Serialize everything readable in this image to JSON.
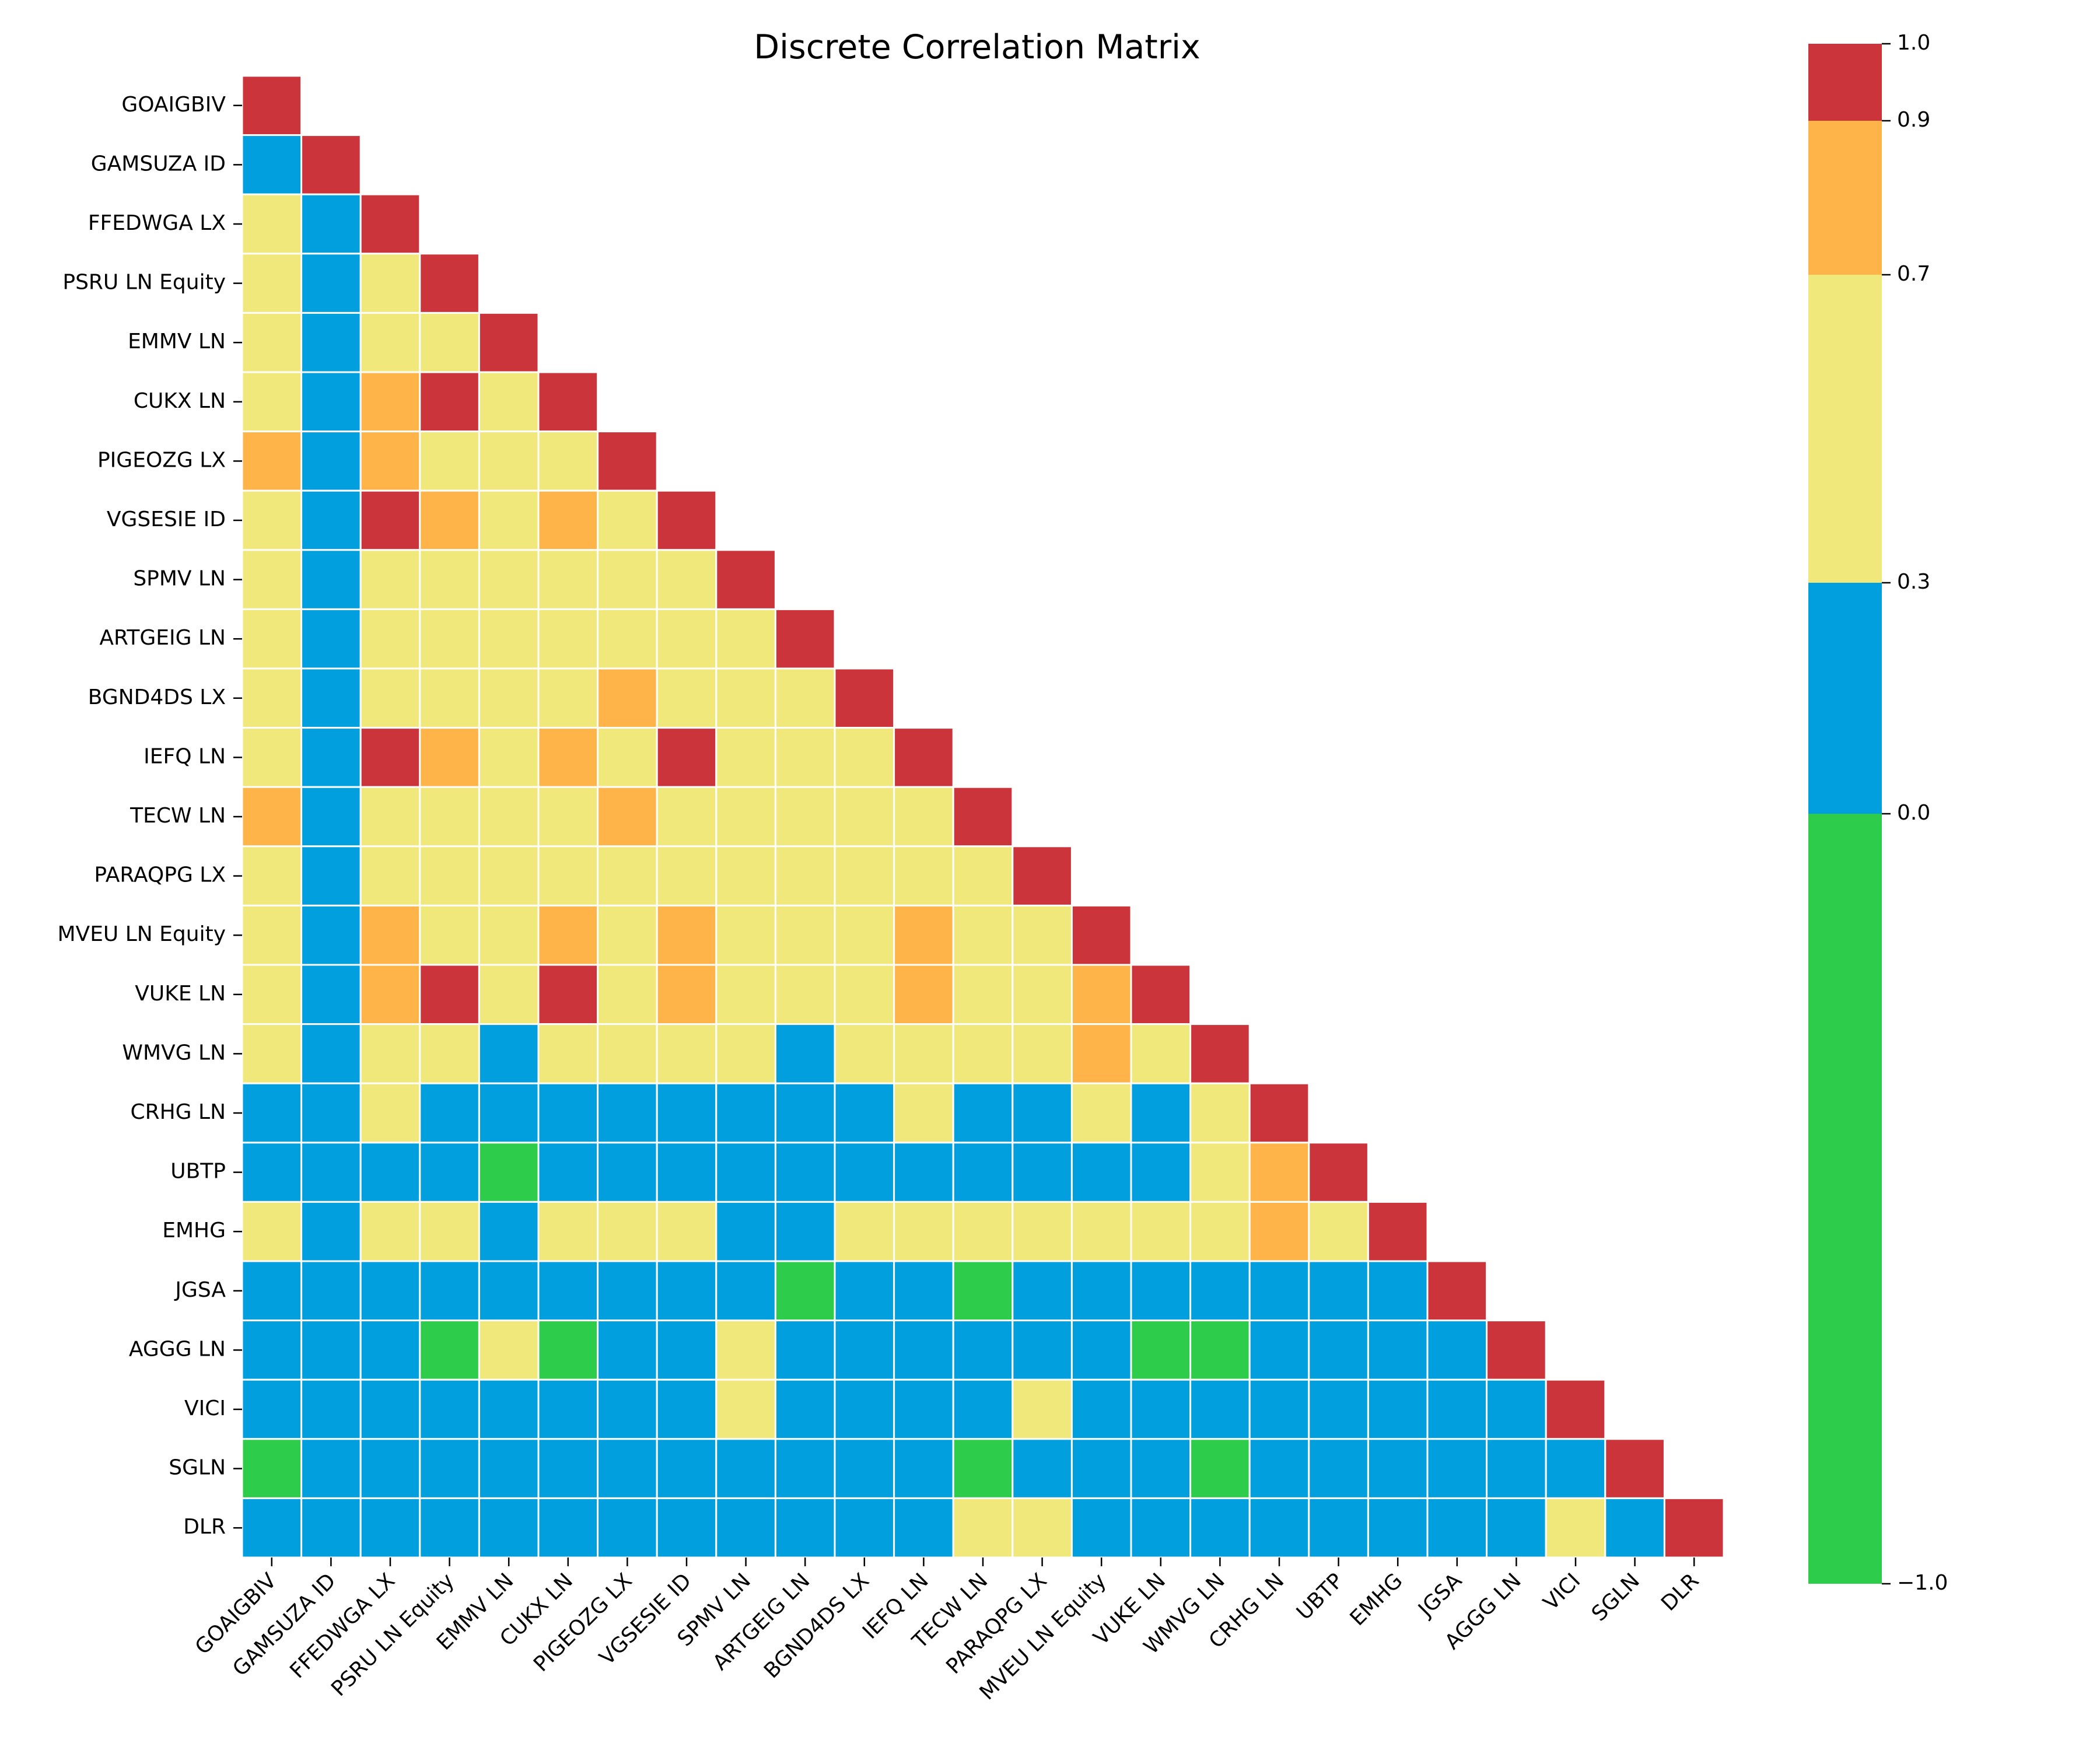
{
  "chart_data": {
    "type": "heatmap",
    "title": "Discrete Correlation Matrix",
    "labels": [
      "GOAIGBIV",
      "GAMSUZA ID",
      "FFEDWGA LX",
      "PSRU LN Equity",
      "EMMV LN",
      "CUKX LN",
      "PIGEOZG LX",
      "VGSESIE ID",
      "SPMV LN",
      "ARTGEIG LN",
      "BGND4DS LX",
      "IEFQ LN",
      "TECW LN",
      "PARAQPG LX",
      "MVEU LN Equity",
      "VUKE LN",
      "WMVG LN",
      "CRHG LN",
      "UBTP",
      "EMHG",
      "JGSA",
      "AGGG LN",
      "VICI",
      "SGLN",
      "DLR"
    ],
    "mask": "upper-triangle",
    "bins": [
      {
        "range": [
          -1.0,
          0.0
        ],
        "color": "#2ecc4b"
      },
      {
        "range": [
          0.0,
          0.3
        ],
        "color": "#029fdf"
      },
      {
        "range": [
          0.3,
          0.7
        ],
        "color": "#f0e87a"
      },
      {
        "range": [
          0.7,
          0.9
        ],
        "color": "#feb449"
      },
      {
        "range": [
          0.9,
          1.0
        ],
        "color": "#cb343b"
      }
    ],
    "colorbar": {
      "ticks": [
        -1.0,
        0.0,
        0.3,
        0.7,
        0.9,
        1.0
      ],
      "tick_labels": [
        "−1.0",
        "0.0",
        "0.3",
        "0.7",
        "0.9",
        "1.0"
      ]
    },
    "values": [
      [
        1.0
      ],
      [
        0.1,
        1.0
      ],
      [
        0.5,
        0.1,
        1.0
      ],
      [
        0.5,
        0.1,
        0.5,
        1.0
      ],
      [
        0.5,
        0.1,
        0.5,
        0.5,
        1.0
      ],
      [
        0.5,
        0.1,
        0.8,
        0.95,
        0.5,
        1.0
      ],
      [
        0.8,
        0.1,
        0.8,
        0.5,
        0.5,
        0.5,
        1.0
      ],
      [
        0.5,
        0.1,
        0.95,
        0.8,
        0.5,
        0.8,
        0.5,
        1.0
      ],
      [
        0.5,
        0.1,
        0.5,
        0.5,
        0.5,
        0.5,
        0.5,
        0.5,
        1.0
      ],
      [
        0.5,
        0.1,
        0.5,
        0.5,
        0.5,
        0.5,
        0.5,
        0.5,
        0.5,
        1.0
      ],
      [
        0.5,
        0.1,
        0.5,
        0.5,
        0.5,
        0.5,
        0.8,
        0.5,
        0.5,
        0.5,
        1.0
      ],
      [
        0.5,
        0.1,
        0.95,
        0.8,
        0.5,
        0.8,
        0.5,
        0.95,
        0.5,
        0.5,
        0.5,
        1.0
      ],
      [
        0.8,
        0.1,
        0.5,
        0.5,
        0.5,
        0.5,
        0.8,
        0.5,
        0.5,
        0.5,
        0.5,
        0.5,
        1.0
      ],
      [
        0.5,
        0.1,
        0.5,
        0.5,
        0.5,
        0.5,
        0.5,
        0.5,
        0.5,
        0.5,
        0.5,
        0.5,
        0.5,
        1.0
      ],
      [
        0.5,
        0.1,
        0.8,
        0.5,
        0.5,
        0.8,
        0.5,
        0.8,
        0.5,
        0.5,
        0.5,
        0.8,
        0.5,
        0.5,
        1.0
      ],
      [
        0.5,
        0.1,
        0.8,
        0.95,
        0.5,
        0.95,
        0.5,
        0.8,
        0.5,
        0.5,
        0.5,
        0.8,
        0.5,
        0.5,
        0.8,
        1.0
      ],
      [
        0.5,
        0.1,
        0.5,
        0.5,
        0.1,
        0.5,
        0.5,
        0.5,
        0.5,
        0.1,
        0.5,
        0.5,
        0.5,
        0.5,
        0.8,
        0.5,
        1.0
      ],
      [
        0.1,
        0.1,
        0.5,
        0.1,
        0.1,
        0.1,
        0.1,
        0.1,
        0.1,
        0.1,
        0.1,
        0.5,
        0.1,
        0.1,
        0.5,
        0.1,
        0.5,
        1.0
      ],
      [
        0.1,
        0.1,
        0.1,
        0.1,
        -0.5,
        0.1,
        0.1,
        0.1,
        0.1,
        0.1,
        0.1,
        0.1,
        0.1,
        0.1,
        0.1,
        0.1,
        0.5,
        0.8,
        1.0
      ],
      [
        0.5,
        0.1,
        0.5,
        0.5,
        0.1,
        0.5,
        0.5,
        0.5,
        0.1,
        0.1,
        0.5,
        0.5,
        0.5,
        0.5,
        0.5,
        0.5,
        0.5,
        0.8,
        0.5,
        1.0
      ],
      [
        0.1,
        0.1,
        0.1,
        0.1,
        0.1,
        0.1,
        0.1,
        0.1,
        0.1,
        -0.5,
        0.1,
        0.1,
        -0.5,
        0.1,
        0.1,
        0.1,
        0.1,
        0.1,
        0.1,
        0.1,
        1.0
      ],
      [
        0.1,
        0.1,
        0.1,
        -0.5,
        0.5,
        -0.5,
        0.1,
        0.1,
        0.5,
        0.1,
        0.1,
        0.1,
        0.1,
        0.1,
        0.1,
        -0.5,
        -0.5,
        0.1,
        0.1,
        0.1,
        0.1,
        1.0
      ],
      [
        0.1,
        0.1,
        0.1,
        0.1,
        0.1,
        0.1,
        0.1,
        0.1,
        0.5,
        0.1,
        0.1,
        0.1,
        0.1,
        0.5,
        0.1,
        0.1,
        0.1,
        0.1,
        0.1,
        0.1,
        0.1,
        0.1,
        1.0
      ],
      [
        -0.5,
        0.1,
        0.1,
        0.1,
        0.1,
        0.1,
        0.1,
        0.1,
        0.1,
        0.1,
        0.1,
        0.1,
        -0.5,
        0.1,
        0.1,
        0.1,
        -0.5,
        0.1,
        0.1,
        0.1,
        0.1,
        0.1,
        0.1,
        1.0
      ],
      [
        0.1,
        0.1,
        0.1,
        0.1,
        0.1,
        0.1,
        0.1,
        0.1,
        0.1,
        0.1,
        0.1,
        0.1,
        0.5,
        0.5,
        0.1,
        0.1,
        0.1,
        0.1,
        0.1,
        0.1,
        0.1,
        0.1,
        0.5,
        0.1,
        1.0
      ]
    ]
  }
}
